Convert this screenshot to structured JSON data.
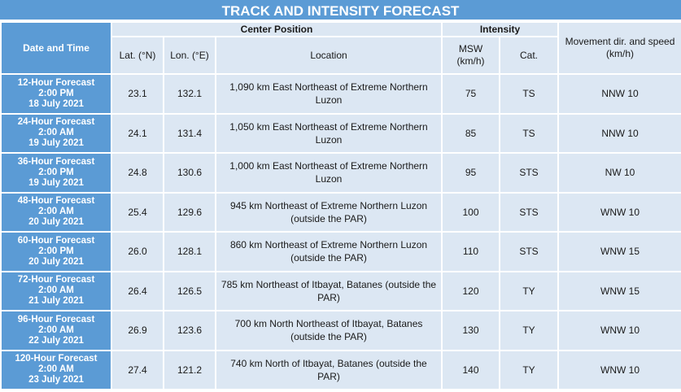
{
  "title": "TRACK AND INTENSITY FORECAST",
  "headers": {
    "date_time": "Date and Time",
    "center_position": "Center Position",
    "intensity": "Intensity",
    "movement": "Movement dir. and speed (km/h)",
    "lat": "Lat. (°N)",
    "lon": "Lon. (°E)",
    "location": "Location",
    "msw": "MSW (km/h)",
    "cat": "Cat."
  },
  "rows": [
    {
      "forecast": "12-Hour Forecast",
      "time": "2:00 PM",
      "date": "18 July 2021",
      "lat": "23.1",
      "lon": "132.1",
      "location": "1,090 km East Northeast of Extreme Northern Luzon",
      "msw": "75",
      "cat": "TS",
      "movement": "NNW 10"
    },
    {
      "forecast": "24-Hour Forecast",
      "time": "2:00 AM",
      "date": "19 July 2021",
      "lat": "24.1",
      "lon": "131.4",
      "location": "1,050 km East Northeast of Extreme Northern Luzon",
      "msw": "85",
      "cat": "TS",
      "movement": "NNW 10"
    },
    {
      "forecast": "36-Hour Forecast",
      "time": "2:00 PM",
      "date": "19 July 2021",
      "lat": "24.8",
      "lon": "130.6",
      "location": "1,000 km East Northeast of Extreme Northern Luzon",
      "msw": "95",
      "cat": "STS",
      "movement": "NW 10"
    },
    {
      "forecast": "48-Hour Forecast",
      "time": "2:00 AM",
      "date": "20 July 2021",
      "lat": "25.4",
      "lon": "129.6",
      "location": "945 km Northeast of Extreme Northern Luzon (outside the PAR)",
      "msw": "100",
      "cat": "STS",
      "movement": "WNW 10"
    },
    {
      "forecast": "60-Hour Forecast",
      "time": "2:00 PM",
      "date": "20 July 2021",
      "lat": "26.0",
      "lon": "128.1",
      "location": "860 km Northeast of Extreme Northern Luzon (outside the PAR)",
      "msw": "110",
      "cat": "STS",
      "movement": "WNW 15"
    },
    {
      "forecast": "72-Hour Forecast",
      "time": "2:00 AM",
      "date": "21 July 2021",
      "lat": "26.4",
      "lon": "126.5",
      "location": "785 km Northeast of Itbayat, Batanes (outside the PAR)",
      "msw": "120",
      "cat": "TY",
      "movement": "WNW 15"
    },
    {
      "forecast": "96-Hour Forecast",
      "time": "2:00 AM",
      "date": "22 July 2021",
      "lat": "26.9",
      "lon": "123.6",
      "location": "700 km North Northeast of Itbayat, Batanes (outside the PAR)",
      "msw": "130",
      "cat": "TY",
      "movement": "WNW 10"
    },
    {
      "forecast": "120-Hour Forecast",
      "time": "2:00 AM",
      "date": "23 July 2021",
      "lat": "27.4",
      "lon": "121.2",
      "location": "740 km North of Itbayat, Batanes (outside the PAR)",
      "msw": "140",
      "cat": "TY",
      "movement": "WNW 10"
    }
  ]
}
